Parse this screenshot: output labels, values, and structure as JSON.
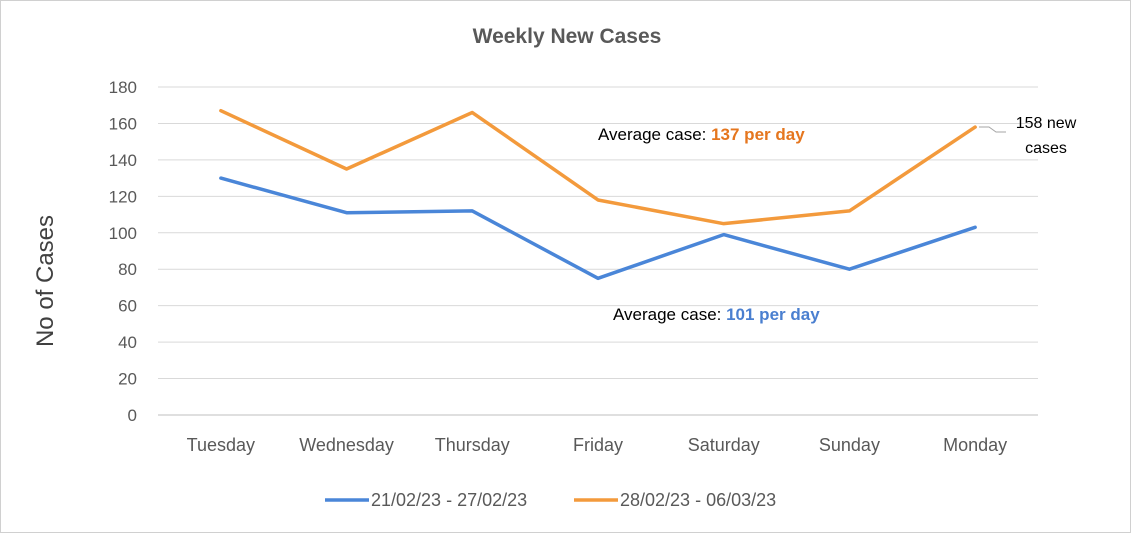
{
  "chart_data": {
    "type": "line",
    "title": "Weekly New Cases",
    "xlabel": "",
    "ylabel": "No of Cases",
    "ylim": [
      0,
      180
    ],
    "yticks": [
      0,
      20,
      40,
      60,
      80,
      100,
      120,
      140,
      160,
      180
    ],
    "grid": true,
    "legend_placement": "bottom",
    "categories": [
      "Tuesday",
      "Wednesday",
      "Thursday",
      "Friday",
      "Saturday",
      "Sunday",
      "Monday"
    ],
    "series": [
      {
        "name": "21/02/23 - 27/02/23",
        "color": "#4a86d8",
        "values": [
          130,
          111,
          112,
          75,
          99,
          80,
          103
        ]
      },
      {
        "name": "28/02/23 - 06/03/23",
        "color": "#f39a3c",
        "values": [
          167,
          135,
          166,
          118,
          105,
          112,
          158
        ]
      }
    ],
    "annotations": [
      {
        "prefix": "Average case:  ",
        "value": "137 per day",
        "color": "#e5761e",
        "series": 1
      },
      {
        "prefix": "Average case: ",
        "value": "101 per day",
        "color": "#4a7fd0",
        "series": 0
      },
      {
        "text_line1": "158 new",
        "text_line2": "cases",
        "series": 1,
        "category": "Monday"
      }
    ]
  }
}
